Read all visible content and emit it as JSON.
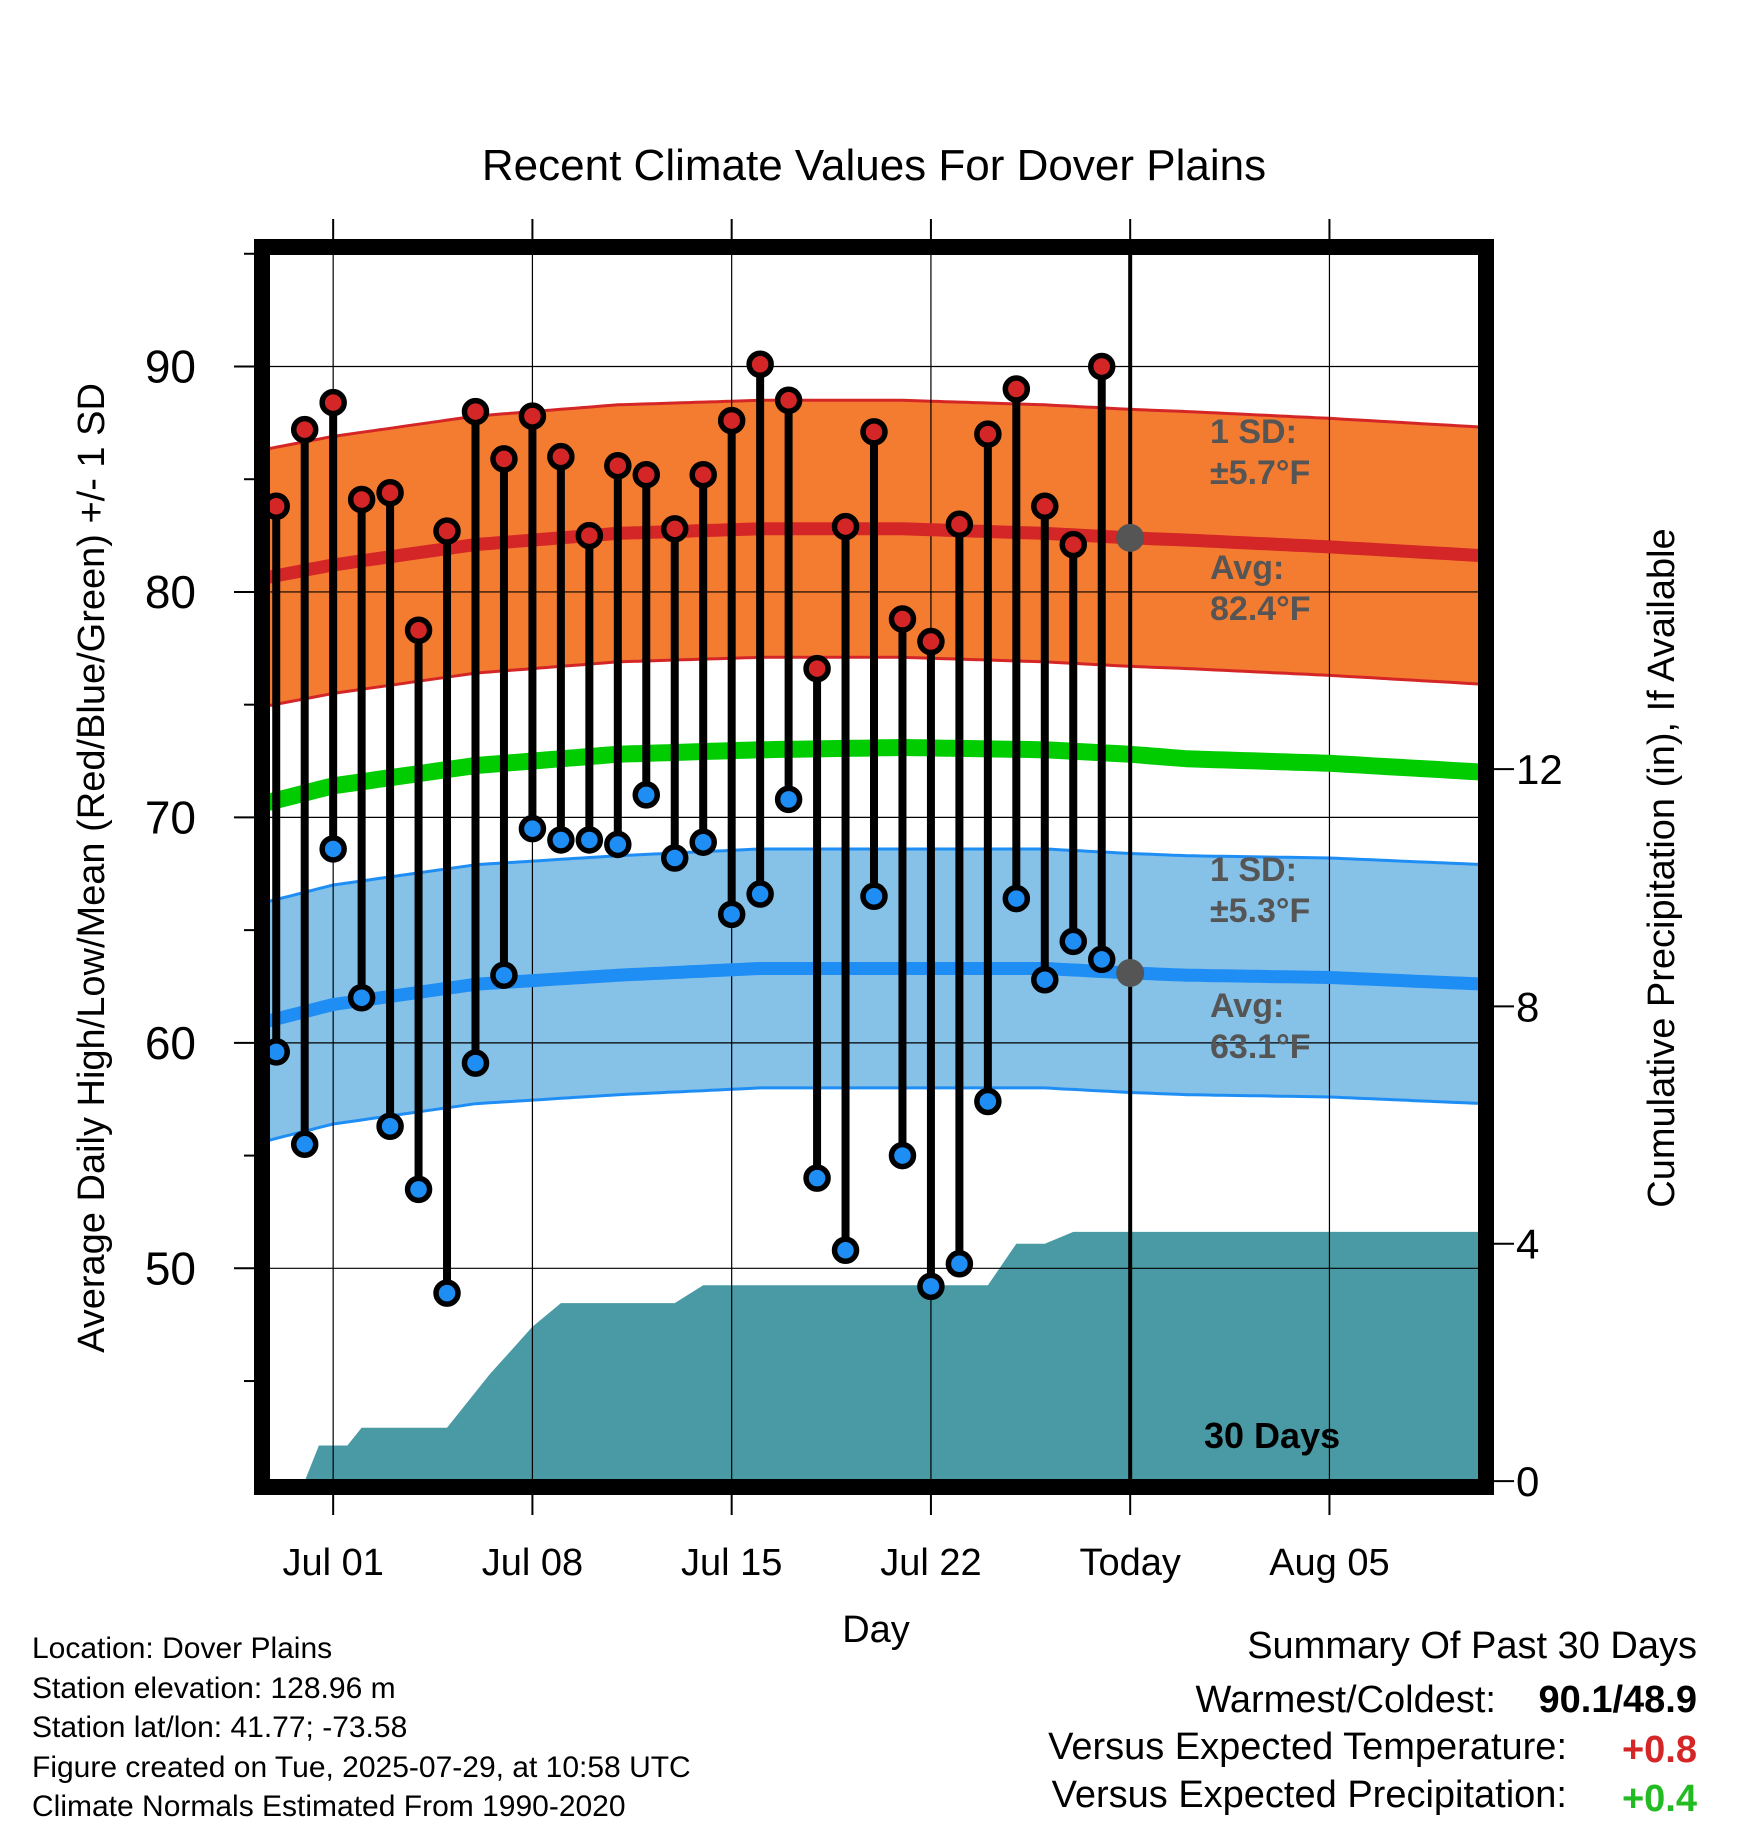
{
  "chart_data": {
    "type": "line",
    "title": "Recent Climate Values For Dover Plains",
    "xlabel": "Day",
    "ylabel": "Average Daily High/Low/Mean (Red/Blue/Green) +/- 1 SD",
    "y2label": "Cumulative Precipitation (in), If Available",
    "xlim": [
      -2.5,
      40.5
    ],
    "ylim": [
      40.3,
      95.3
    ],
    "y2lim": [
      -0.1,
      20.8
    ],
    "x_ticks": [
      {
        "x": 0,
        "label": "Jul 01"
      },
      {
        "x": 7,
        "label": "Jul 08"
      },
      {
        "x": 14,
        "label": "Jul 15"
      },
      {
        "x": 21,
        "label": "Jul 22"
      },
      {
        "x": 28,
        "label": "Today"
      },
      {
        "x": 35,
        "label": "Aug 05"
      }
    ],
    "y_ticks": [
      50,
      60,
      70,
      80,
      90
    ],
    "y_minor_ticks": [
      45,
      55,
      65,
      75,
      85,
      95
    ],
    "y2_ticks": [
      0,
      4,
      8,
      12
    ],
    "grid": true,
    "today_x": 28,
    "today_label": "30 Days",
    "colors": {
      "high_band": "#f47c30",
      "high_line": "#d42626",
      "low_band": "#86c1e8",
      "low_line": "#1e8ef5",
      "mean_line": "#00cc00",
      "precip": "#4a9aa5",
      "high_dot": "#d42626",
      "low_dot": "#1e8ef5",
      "annotation": "#555555",
      "today_dot": "#555555"
    },
    "normals_x": [
      -2.5,
      0,
      5,
      10,
      15,
      20,
      25,
      28,
      30,
      35,
      40.5
    ],
    "normal_high": {
      "mean": [
        80.6,
        81.2,
        82.1,
        82.6,
        82.8,
        82.8,
        82.6,
        82.4,
        82.3,
        82.0,
        81.6
      ],
      "sd": 5.7
    },
    "normal_low": {
      "mean": [
        60.9,
        61.7,
        62.6,
        63.0,
        63.3,
        63.3,
        63.3,
        63.1,
        63.0,
        62.9,
        62.6
      ],
      "sd": 5.3
    },
    "normal_mean": [
      70.6,
      71.4,
      72.3,
      72.8,
      73.0,
      73.1,
      73.0,
      72.8,
      72.6,
      72.4,
      72.0
    ],
    "annotations": {
      "high_sd_label": "1 SD:",
      "high_sd_value": "±5.7°F",
      "high_avg_label": "Avg:",
      "high_avg_value": "82.4°F",
      "low_sd_label": "1 SD:",
      "low_sd_value": "±5.3°F",
      "low_avg_label": "Avg:",
      "low_avg_value": "63.1°F"
    },
    "daily": [
      {
        "x": -2,
        "high": 83.8,
        "low": 59.6
      },
      {
        "x": -1,
        "high": 87.2,
        "low": 55.5
      },
      {
        "x": 0,
        "high": 88.4,
        "low": 68.6
      },
      {
        "x": 1,
        "high": 84.1,
        "low": 62.0
      },
      {
        "x": 2,
        "high": 84.4,
        "low": 56.3
      },
      {
        "x": 3,
        "high": 78.3,
        "low": 53.5
      },
      {
        "x": 4,
        "high": 82.7,
        "low": 48.9
      },
      {
        "x": 5,
        "high": 88.0,
        "low": 59.1
      },
      {
        "x": 6,
        "high": 85.9,
        "low": 63.0
      },
      {
        "x": 7,
        "high": 87.8,
        "low": 69.5
      },
      {
        "x": 8,
        "high": 86.0,
        "low": 69.0
      },
      {
        "x": 9,
        "high": 82.5,
        "low": 69.0
      },
      {
        "x": 10,
        "high": 85.6,
        "low": 68.8
      },
      {
        "x": 11,
        "high": 85.2,
        "low": 71.0
      },
      {
        "x": 12,
        "high": 82.8,
        "low": 68.2
      },
      {
        "x": 13,
        "high": 85.2,
        "low": 68.9
      },
      {
        "x": 14,
        "high": 87.6,
        "low": 65.7
      },
      {
        "x": 15,
        "high": 90.1,
        "low": 66.6
      },
      {
        "x": 16,
        "high": 88.5,
        "low": 70.8
      },
      {
        "x": 17,
        "high": 76.6,
        "low": 54.0
      },
      {
        "x": 18,
        "high": 82.9,
        "low": 50.8
      },
      {
        "x": 19,
        "high": 87.1,
        "low": 66.5
      },
      {
        "x": 20,
        "high": 78.8,
        "low": 55.0
      },
      {
        "x": 21,
        "high": 77.8,
        "low": 49.2
      },
      {
        "x": 22,
        "high": 83.0,
        "low": 50.2
      },
      {
        "x": 23,
        "high": 87.0,
        "low": 57.4
      },
      {
        "x": 24,
        "high": 89.0,
        "low": 66.4
      },
      {
        "x": 25,
        "high": 83.8,
        "low": 62.8
      },
      {
        "x": 26,
        "high": 82.1,
        "low": 64.5
      },
      {
        "x": 27,
        "high": 90.0,
        "low": 63.7
      }
    ],
    "precip_steps": [
      [
        -1,
        0.0
      ],
      [
        -0.5,
        0.6
      ],
      [
        0.5,
        0.6
      ],
      [
        1,
        0.9
      ],
      [
        2,
        0.9
      ],
      [
        4,
        0.9
      ],
      [
        5.5,
        1.8
      ],
      [
        7,
        2.6
      ],
      [
        8,
        3.0
      ],
      [
        9,
        3.0
      ],
      [
        12,
        3.0
      ],
      [
        13,
        3.3
      ],
      [
        14,
        3.3
      ],
      [
        23,
        3.3
      ],
      [
        24,
        4.0
      ],
      [
        25,
        4.0
      ],
      [
        26,
        4.2
      ],
      [
        40.5,
        4.2
      ]
    ]
  },
  "footer": {
    "location": "Location: Dover Plains",
    "elevation": "Station elevation: 128.96 m",
    "latlon": "Station lat/lon: 41.77; -73.58",
    "created": "Figure created on Tue, 2025-07-29, at 10:58 UTC",
    "normals": "Climate Normals Estimated From 1990-2020"
  },
  "summary": {
    "title": "Summary Of Past 30 Days",
    "warmest_coldest_label": "Warmest/Coldest:",
    "warmest_coldest_value": "90.1/48.9",
    "temp_label": "Versus Expected Temperature:",
    "temp_value": "+0.8",
    "temp_color": "#d42626",
    "precip_label": "Versus Expected Precipitation:",
    "precip_value": "+0.4",
    "precip_color": "#22bb22"
  }
}
